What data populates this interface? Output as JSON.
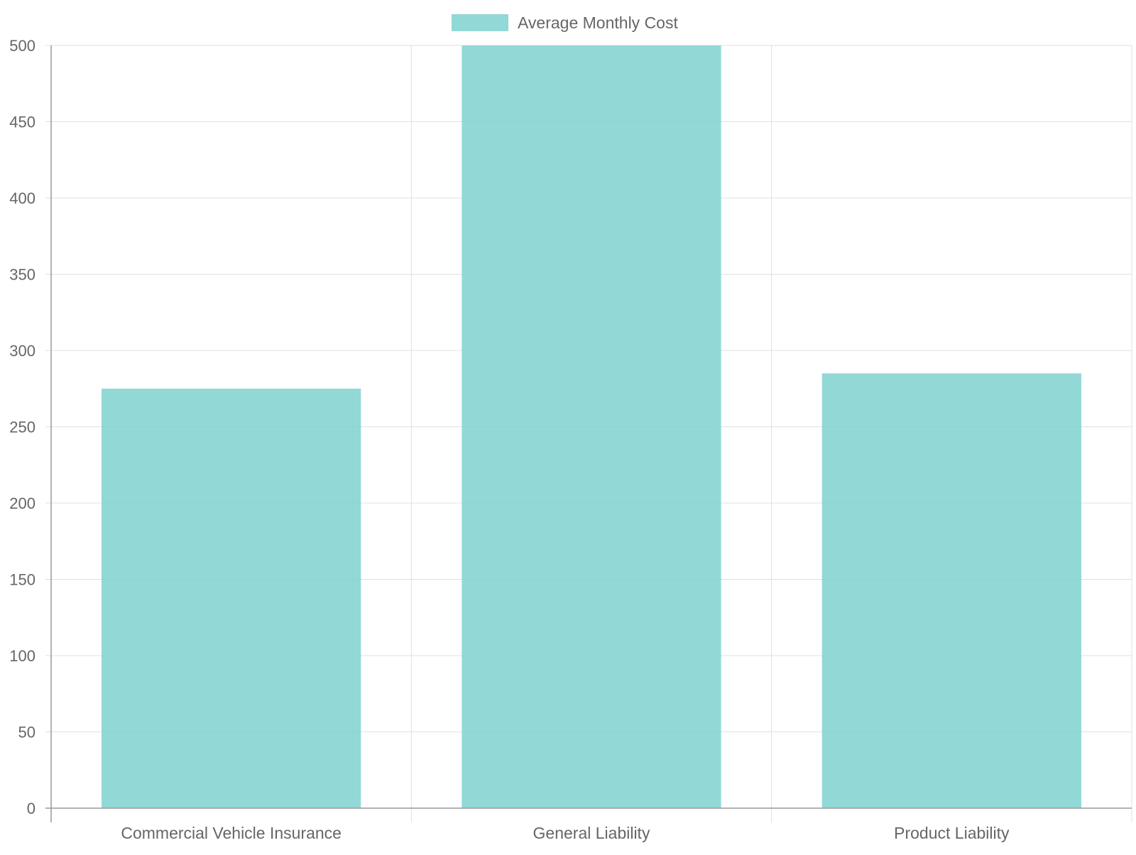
{
  "colors": {
    "bar_fill": "#7fd1cf",
    "grid": "#e0e0e0",
    "axis": "#999999",
    "text": "#666666"
  },
  "chart_data": {
    "type": "bar",
    "categories": [
      "Commercial Vehicle Insurance",
      "General Liability",
      "Product Liability"
    ],
    "series": [
      {
        "name": "Average Monthly Cost",
        "values": [
          275,
          500,
          285
        ]
      }
    ],
    "title": "",
    "xlabel": "",
    "ylabel": "",
    "ylim": [
      0,
      500
    ],
    "yticks": [
      0,
      50,
      100,
      150,
      200,
      250,
      300,
      350,
      400,
      450,
      500
    ],
    "grid": true,
    "legend_position": "top-center"
  }
}
